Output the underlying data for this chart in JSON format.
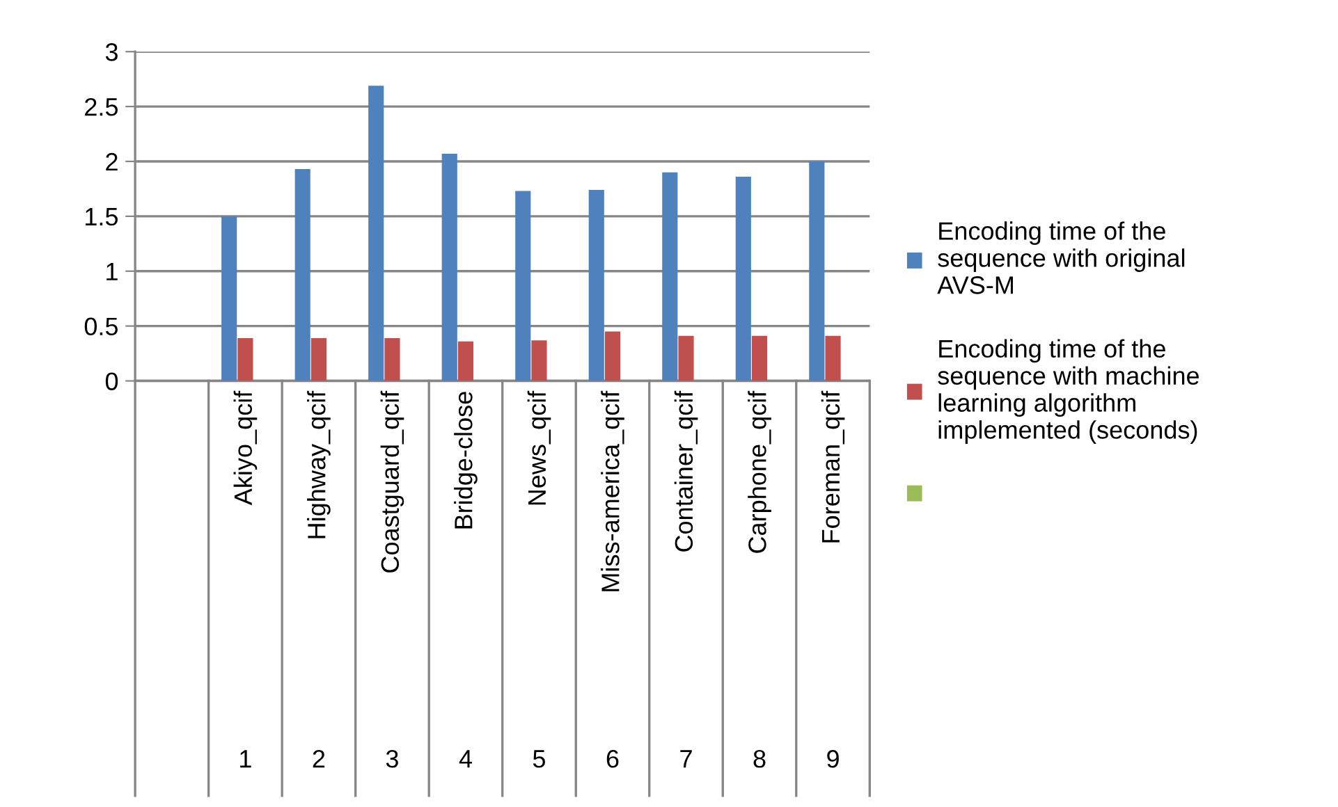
{
  "chart_data": {
    "type": "bar",
    "categories": [
      null,
      "Akiyo_qcif\n1",
      "Highway_qcif\n2",
      "Coastguard_qcif\n3",
      "Bridge-close\n4",
      "News_qcif\n5",
      "Miss-america_qcif\n6",
      "Container_qcif\n7",
      "Carphone_qcif\n8",
      "Foreman_qcif\n9"
    ],
    "series": [
      {
        "name": "Encoding time of the sequence with original AVS-M",
        "color": "#4f81bd",
        "values": [
          null,
          1.5,
          1.93,
          2.69,
          2.07,
          1.73,
          1.74,
          1.9,
          1.86,
          2.0
        ]
      },
      {
        "name": "Encoding time of the sequence with machine learning algorithm implemented (seconds)",
        "color": "#c0504d",
        "values": [
          null,
          0.39,
          0.39,
          0.39,
          0.36,
          0.37,
          0.45,
          0.41,
          0.41,
          0.41
        ]
      },
      {
        "color": "#9bbb59",
        "values": [
          null,
          null,
          null,
          null,
          null,
          null,
          null,
          null,
          null,
          null
        ]
      }
    ],
    "ylim": [
      0,
      3
    ],
    "yticks": [
      0,
      0.5,
      1,
      1.5,
      2,
      2.5,
      3
    ],
    "grid": "y",
    "legend": "right"
  }
}
